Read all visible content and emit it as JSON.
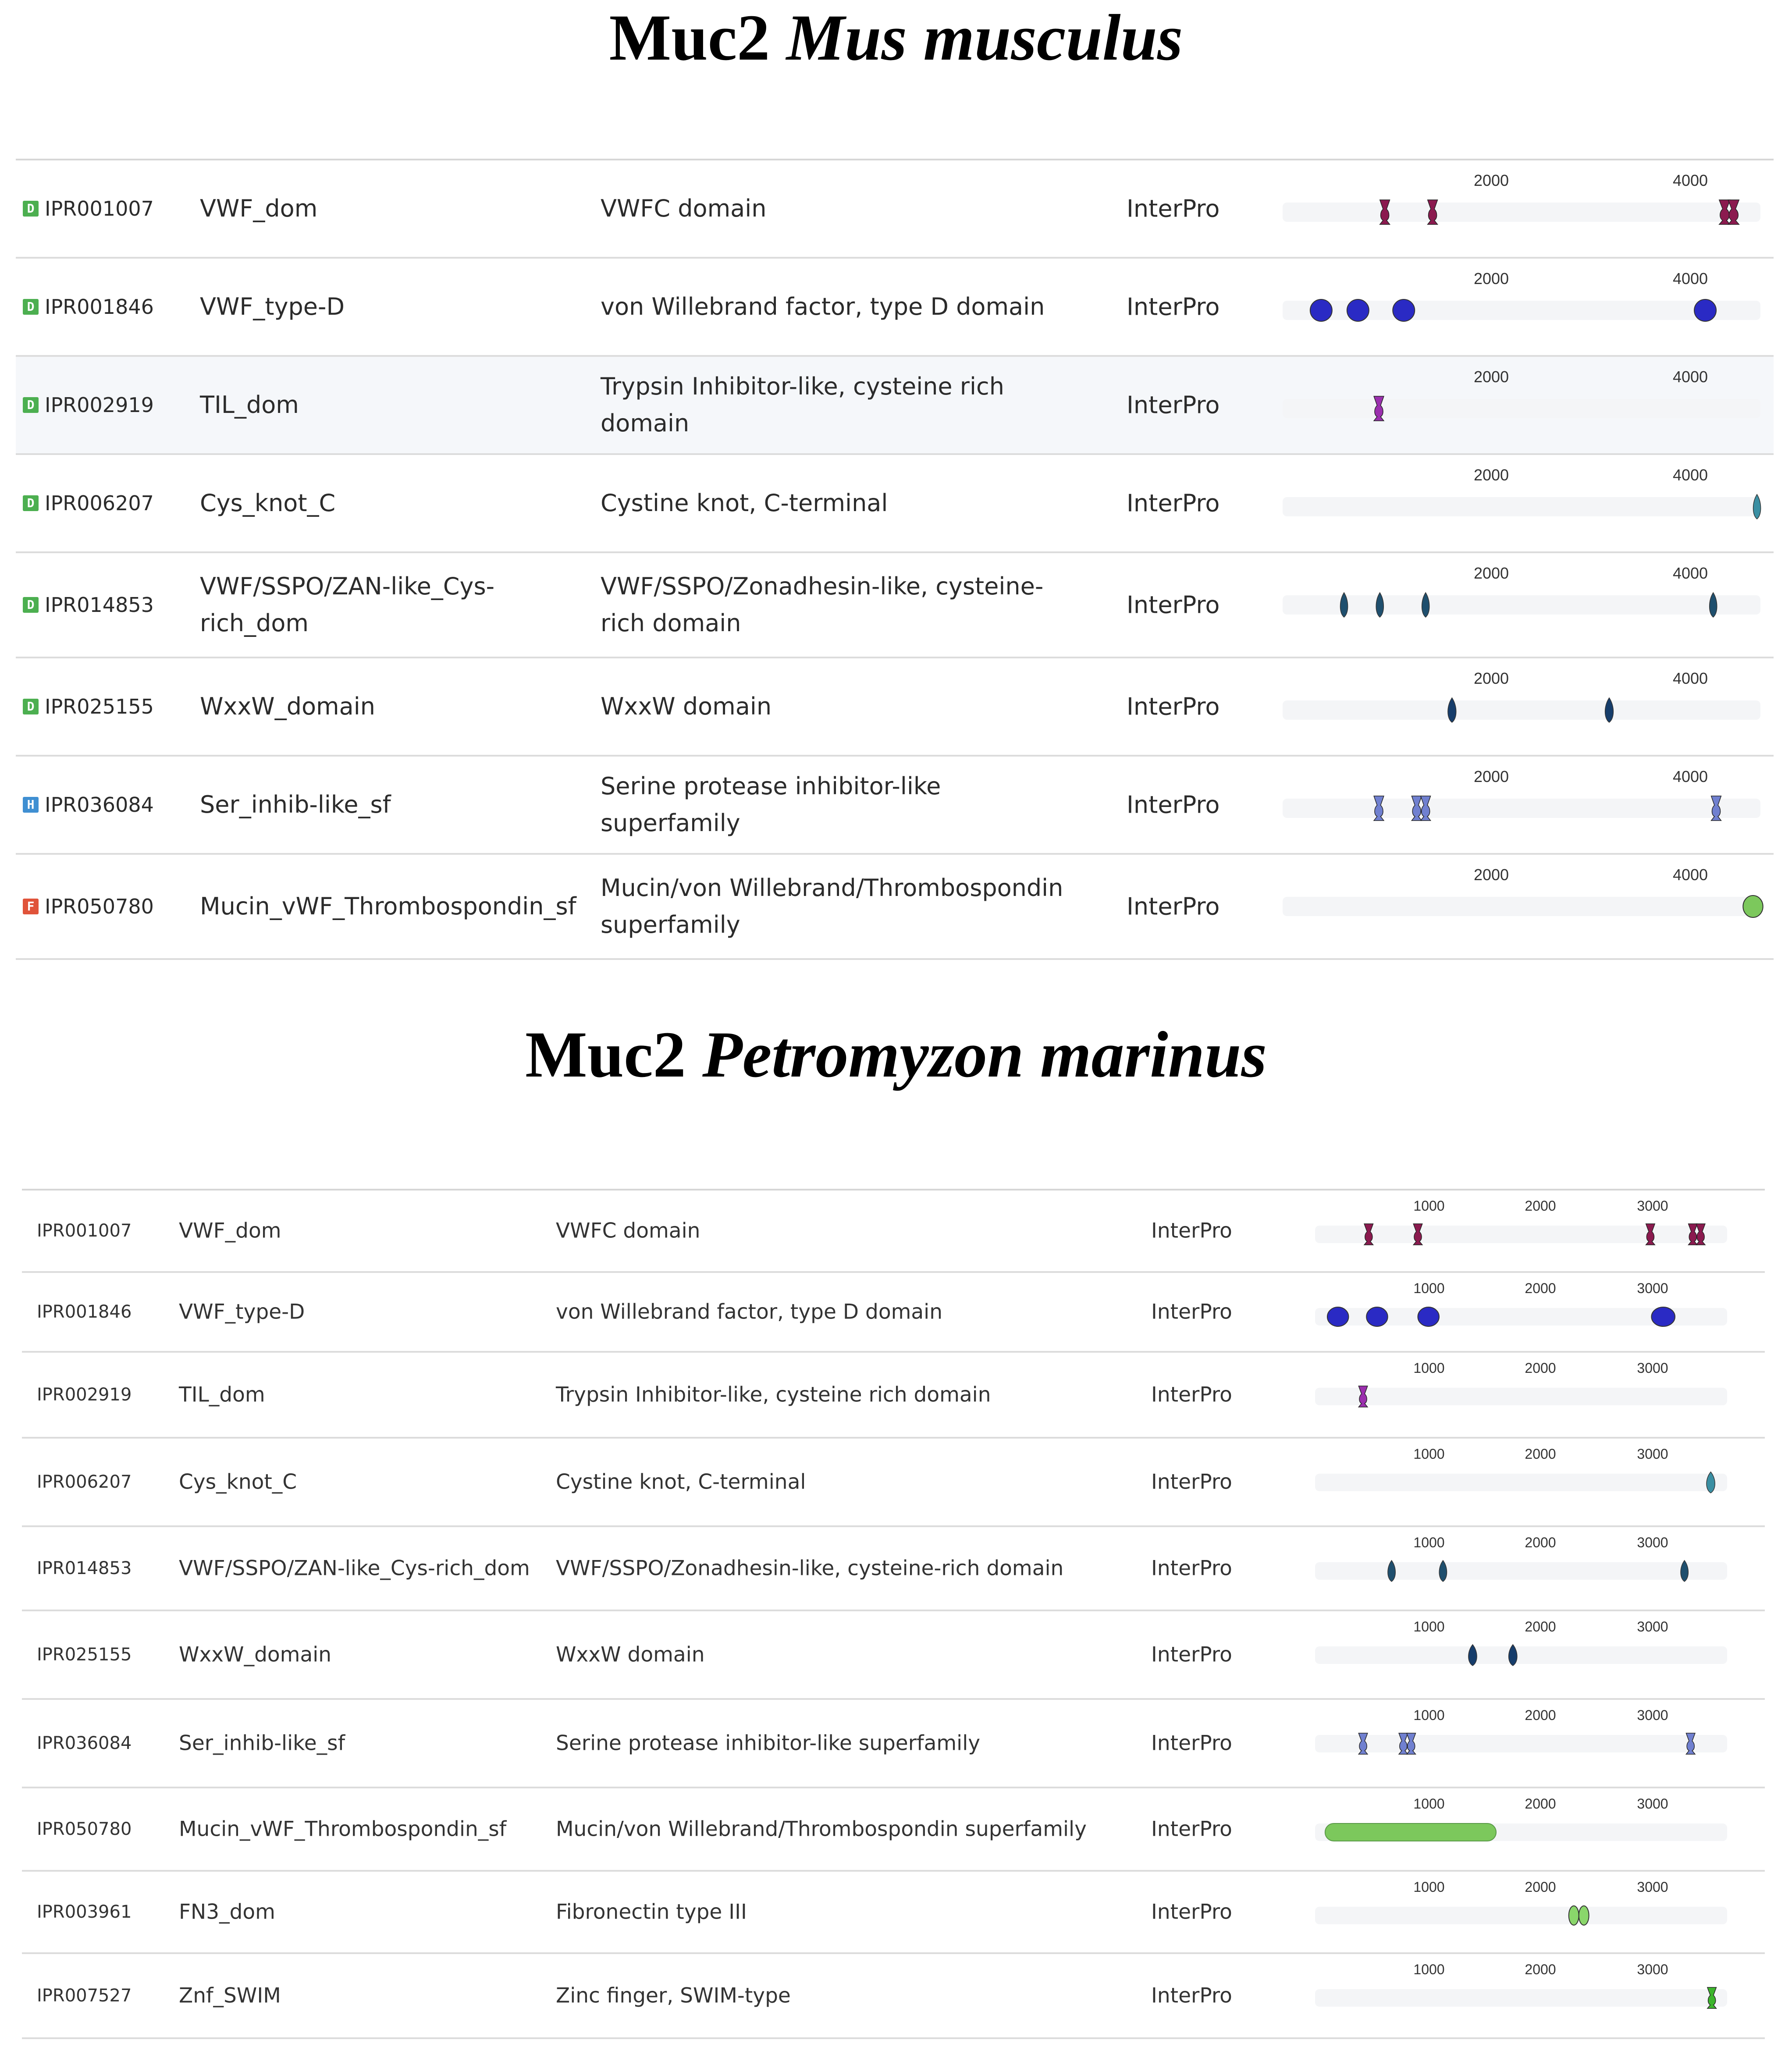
{
  "titles": {
    "mouse": {
      "gene": "Muc2",
      "species": "Mus musculus"
    },
    "lamprey": {
      "gene": "Muc2",
      "species": "Petromyzon marinus"
    }
  },
  "colors": {
    "domain_badge": "#4caf50",
    "homologous_badge": "#3f8fd2",
    "family_badge": "#e0533a",
    "vwf_dom": "#8b1a4f",
    "vwf_type_d": "#2a2ac4",
    "til_dom": "#9b2fae",
    "cys_knot": "#3a8fa3",
    "vwf_sspo": "#1f4f6e",
    "wxxw": "#163d6b",
    "ser_inhib": "#7080d0",
    "mucin_sf": "#7cc85c",
    "fn3": "#8ad66b",
    "znf_swim": "#3cb52c"
  },
  "mouse": {
    "ticks": [
      "2000",
      "4000"
    ],
    "rows": [
      {
        "badge": "D",
        "badge_type": "domain",
        "accession": "IPR001007",
        "name": "VWF_dom",
        "description": "VWFC domain",
        "source": "InterPro",
        "icon": "vwf-dom-marks",
        "color": "vwf_dom",
        "features": [
          {
            "start": 880,
            "end": 980,
            "shape": "hourglass"
          },
          {
            "start": 1360,
            "end": 1460,
            "shape": "hourglass"
          },
          {
            "start": 4290,
            "end": 4400,
            "shape": "hourglass"
          },
          {
            "start": 4380,
            "end": 4490,
            "shape": "hourglass"
          }
        ]
      },
      {
        "badge": "D",
        "badge_type": "domain",
        "accession": "IPR001846",
        "name": "VWF_type-D",
        "description": "von Willebrand factor, type D domain",
        "source": "InterPro",
        "icon": "vwf-type-d-marks",
        "color": "vwf_type_d",
        "features": [
          {
            "start": 180,
            "end": 400,
            "shape": "ellipse"
          },
          {
            "start": 550,
            "end": 770,
            "shape": "ellipse"
          },
          {
            "start": 1010,
            "end": 1230,
            "shape": "ellipse"
          },
          {
            "start": 4040,
            "end": 4260,
            "shape": "ellipse"
          }
        ]
      },
      {
        "badge": "D",
        "badge_type": "domain",
        "accession": "IPR002919",
        "name": "TIL_dom",
        "description": "Trypsin Inhibitor-like, cysteine rich domain",
        "source": "InterPro",
        "icon": "til-dom-marks",
        "color": "til_dom",
        "features": [
          {
            "start": 820,
            "end": 920,
            "shape": "hourglass"
          }
        ]
      },
      {
        "badge": "D",
        "badge_type": "domain",
        "accession": "IPR006207",
        "name": "Cys_knot_C",
        "description": "Cystine knot, C-terminal",
        "source": "InterPro",
        "icon": "cys-knot-marks",
        "color": "cys_knot",
        "features": [
          {
            "start": 4620,
            "end": 4720,
            "shape": "drop"
          }
        ]
      },
      {
        "badge": "D",
        "badge_type": "domain",
        "accession": "IPR014853",
        "name": "VWF/SSPO/ZAN-like_Cys-rich_dom",
        "description": "VWF/SSPO/Zonadhesin-like, cysteine-rich domain",
        "source": "InterPro",
        "icon": "vwf-sspo-marks",
        "color": "vwf_sspo",
        "features": [
          {
            "start": 470,
            "end": 570,
            "shape": "drop"
          },
          {
            "start": 830,
            "end": 930,
            "shape": "drop"
          },
          {
            "start": 1290,
            "end": 1390,
            "shape": "drop"
          },
          {
            "start": 4180,
            "end": 4280,
            "shape": "drop"
          }
        ]
      },
      {
        "badge": "D",
        "badge_type": "domain",
        "accession": "IPR025155",
        "name": "WxxW_domain",
        "description": "WxxW domain",
        "source": "InterPro",
        "icon": "wxxw-marks",
        "color": "wxxw",
        "features": [
          {
            "start": 1550,
            "end": 1660,
            "shape": "drop"
          },
          {
            "start": 3130,
            "end": 3240,
            "shape": "drop"
          }
        ]
      },
      {
        "badge": "H",
        "badge_type": "homologous",
        "accession": "IPR036084",
        "name": "Ser_inhib-like_sf",
        "description": "Serine protease inhibitor-like superfamily",
        "source": "InterPro",
        "icon": "ser-inhib-marks",
        "color": "ser_inhib",
        "features": [
          {
            "start": 820,
            "end": 920,
            "shape": "hourglass"
          },
          {
            "start": 1200,
            "end": 1300,
            "shape": "hourglass"
          },
          {
            "start": 1290,
            "end": 1390,
            "shape": "hourglass"
          },
          {
            "start": 4210,
            "end": 4310,
            "shape": "hourglass"
          }
        ]
      },
      {
        "badge": "F",
        "badge_type": "family",
        "accession": "IPR050780",
        "name": "Mucin_vWF_Thrombospondin_sf",
        "description": "Mucin/von Willebrand/Thrombospondin superfamily",
        "source": "InterPro",
        "icon": "mucin-sf-marks",
        "color": "mucin_sf",
        "features": [
          {
            "start": 4530,
            "end": 4730,
            "shape": "ellipse"
          }
        ]
      }
    ]
  },
  "lamprey": {
    "ticks": [
      "1000",
      "2000",
      "3000"
    ],
    "rows": [
      {
        "accession": "IPR001007",
        "name": "VWF_dom",
        "description": "VWFC domain",
        "source": "InterPro",
        "icon": "vwf-dom-marks",
        "color": "vwf_dom",
        "features": [
          {
            "start": 420,
            "end": 500,
            "shape": "hourglass"
          },
          {
            "start": 860,
            "end": 940,
            "shape": "hourglass"
          },
          {
            "start": 2940,
            "end": 3020,
            "shape": "hourglass"
          },
          {
            "start": 3320,
            "end": 3400,
            "shape": "hourglass"
          },
          {
            "start": 3390,
            "end": 3470,
            "shape": "hourglass"
          }
        ]
      },
      {
        "accession": "IPR001846",
        "name": "VWF_type-D",
        "description": "von Willebrand factor, type D domain",
        "source": "InterPro",
        "icon": "vwf-type-d-marks",
        "color": "vwf_type_d",
        "features": [
          {
            "start": 90,
            "end": 280,
            "shape": "ellipse"
          },
          {
            "start": 440,
            "end": 630,
            "shape": "ellipse"
          },
          {
            "start": 900,
            "end": 1090,
            "shape": "ellipse"
          },
          {
            "start": 2990,
            "end": 3200,
            "shape": "ellipse"
          }
        ]
      },
      {
        "accession": "IPR002919",
        "name": "TIL_dom",
        "description": "Trypsin Inhibitor-like, cysteine rich domain",
        "source": "InterPro",
        "icon": "til-dom-marks",
        "color": "til_dom",
        "features": [
          {
            "start": 370,
            "end": 450,
            "shape": "hourglass"
          }
        ]
      },
      {
        "accession": "IPR006207",
        "name": "Cys_knot_C",
        "description": "Cystine knot, C-terminal",
        "source": "InterPro",
        "icon": "cys-knot-marks",
        "color": "cys_knot",
        "features": [
          {
            "start": 3470,
            "end": 3570,
            "shape": "drop"
          }
        ]
      },
      {
        "accession": "IPR014853",
        "name": "VWF/SSPO/ZAN-like_Cys-rich_dom",
        "description": "VWF/SSPO/Zonadhesin-like, cysteine-rich domain",
        "source": "InterPro",
        "icon": "vwf-sspo-marks",
        "color": "vwf_sspo",
        "features": [
          {
            "start": 620,
            "end": 710,
            "shape": "drop"
          },
          {
            "start": 1080,
            "end": 1170,
            "shape": "drop"
          },
          {
            "start": 3240,
            "end": 3330,
            "shape": "drop"
          }
        ]
      },
      {
        "accession": "IPR025155",
        "name": "WxxW_domain",
        "description": "WxxW domain",
        "source": "InterPro",
        "icon": "wxxw-marks",
        "color": "wxxw",
        "features": [
          {
            "start": 1340,
            "end": 1440,
            "shape": "drop"
          },
          {
            "start": 1700,
            "end": 1800,
            "shape": "drop"
          }
        ]
      },
      {
        "accession": "IPR036084",
        "name": "Ser_inhib-like_sf",
        "description": "Serine protease inhibitor-like superfamily",
        "source": "InterPro",
        "icon": "ser-inhib-marks",
        "color": "ser_inhib",
        "features": [
          {
            "start": 370,
            "end": 450,
            "shape": "hourglass"
          },
          {
            "start": 730,
            "end": 810,
            "shape": "hourglass"
          },
          {
            "start": 800,
            "end": 880,
            "shape": "hourglass"
          },
          {
            "start": 3300,
            "end": 3380,
            "shape": "hourglass"
          }
        ]
      },
      {
        "accession": "IPR050780",
        "name": "Mucin_vWF_Thrombospondin_sf",
        "description": "Mucin/von Willebrand/Thrombospondin superfamily",
        "source": "InterPro",
        "icon": "mucin-sf-marks",
        "color": "mucin_sf",
        "features": [
          {
            "start": 70,
            "end": 1600,
            "shape": "bar"
          }
        ]
      },
      {
        "accession": "IPR003961",
        "name": "FN3_dom",
        "description": "Fibronectin type III",
        "source": "InterPro",
        "icon": "fn3-marks",
        "color": "fn3",
        "features": [
          {
            "start": 2250,
            "end": 2340,
            "shape": "ellipse"
          },
          {
            "start": 2340,
            "end": 2430,
            "shape": "ellipse"
          }
        ]
      },
      {
        "accession": "IPR007527",
        "name": "Znf_SWIM",
        "description": "Zinc finger, SWIM-type",
        "source": "InterPro",
        "icon": "znf-swim-marks",
        "color": "znf_swim",
        "features": [
          {
            "start": 3490,
            "end": 3570,
            "shape": "hourglass"
          }
        ]
      }
    ]
  }
}
